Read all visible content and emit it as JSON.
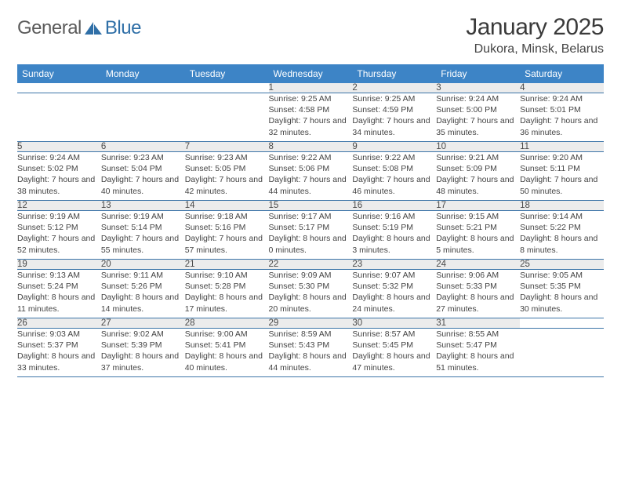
{
  "logo": {
    "text1": "General",
    "text2": "Blue"
  },
  "title": "January 2025",
  "location": "Dukora, Minsk, Belarus",
  "colors": {
    "header_bg": "#3d84c6",
    "header_text": "#ffffff",
    "daynum_bg": "#ececec",
    "row_divider": "#3d75a8",
    "logo_gray": "#5b5b5b",
    "logo_blue": "#2f6fa7"
  },
  "weekdays": [
    "Sunday",
    "Monday",
    "Tuesday",
    "Wednesday",
    "Thursday",
    "Friday",
    "Saturday"
  ],
  "weeks": [
    [
      null,
      null,
      null,
      {
        "n": "1",
        "sr": "9:25 AM",
        "ss": "4:58 PM",
        "dl": "7 hours and 32 minutes."
      },
      {
        "n": "2",
        "sr": "9:25 AM",
        "ss": "4:59 PM",
        "dl": "7 hours and 34 minutes."
      },
      {
        "n": "3",
        "sr": "9:24 AM",
        "ss": "5:00 PM",
        "dl": "7 hours and 35 minutes."
      },
      {
        "n": "4",
        "sr": "9:24 AM",
        "ss": "5:01 PM",
        "dl": "7 hours and 36 minutes."
      }
    ],
    [
      {
        "n": "5",
        "sr": "9:24 AM",
        "ss": "5:02 PM",
        "dl": "7 hours and 38 minutes."
      },
      {
        "n": "6",
        "sr": "9:23 AM",
        "ss": "5:04 PM",
        "dl": "7 hours and 40 minutes."
      },
      {
        "n": "7",
        "sr": "9:23 AM",
        "ss": "5:05 PM",
        "dl": "7 hours and 42 minutes."
      },
      {
        "n": "8",
        "sr": "9:22 AM",
        "ss": "5:06 PM",
        "dl": "7 hours and 44 minutes."
      },
      {
        "n": "9",
        "sr": "9:22 AM",
        "ss": "5:08 PM",
        "dl": "7 hours and 46 minutes."
      },
      {
        "n": "10",
        "sr": "9:21 AM",
        "ss": "5:09 PM",
        "dl": "7 hours and 48 minutes."
      },
      {
        "n": "11",
        "sr": "9:20 AM",
        "ss": "5:11 PM",
        "dl": "7 hours and 50 minutes."
      }
    ],
    [
      {
        "n": "12",
        "sr": "9:19 AM",
        "ss": "5:12 PM",
        "dl": "7 hours and 52 minutes."
      },
      {
        "n": "13",
        "sr": "9:19 AM",
        "ss": "5:14 PM",
        "dl": "7 hours and 55 minutes."
      },
      {
        "n": "14",
        "sr": "9:18 AM",
        "ss": "5:16 PM",
        "dl": "7 hours and 57 minutes."
      },
      {
        "n": "15",
        "sr": "9:17 AM",
        "ss": "5:17 PM",
        "dl": "8 hours and 0 minutes."
      },
      {
        "n": "16",
        "sr": "9:16 AM",
        "ss": "5:19 PM",
        "dl": "8 hours and 3 minutes."
      },
      {
        "n": "17",
        "sr": "9:15 AM",
        "ss": "5:21 PM",
        "dl": "8 hours and 5 minutes."
      },
      {
        "n": "18",
        "sr": "9:14 AM",
        "ss": "5:22 PM",
        "dl": "8 hours and 8 minutes."
      }
    ],
    [
      {
        "n": "19",
        "sr": "9:13 AM",
        "ss": "5:24 PM",
        "dl": "8 hours and 11 minutes."
      },
      {
        "n": "20",
        "sr": "9:11 AM",
        "ss": "5:26 PM",
        "dl": "8 hours and 14 minutes."
      },
      {
        "n": "21",
        "sr": "9:10 AM",
        "ss": "5:28 PM",
        "dl": "8 hours and 17 minutes."
      },
      {
        "n": "22",
        "sr": "9:09 AM",
        "ss": "5:30 PM",
        "dl": "8 hours and 20 minutes."
      },
      {
        "n": "23",
        "sr": "9:07 AM",
        "ss": "5:32 PM",
        "dl": "8 hours and 24 minutes."
      },
      {
        "n": "24",
        "sr": "9:06 AM",
        "ss": "5:33 PM",
        "dl": "8 hours and 27 minutes."
      },
      {
        "n": "25",
        "sr": "9:05 AM",
        "ss": "5:35 PM",
        "dl": "8 hours and 30 minutes."
      }
    ],
    [
      {
        "n": "26",
        "sr": "9:03 AM",
        "ss": "5:37 PM",
        "dl": "8 hours and 33 minutes."
      },
      {
        "n": "27",
        "sr": "9:02 AM",
        "ss": "5:39 PM",
        "dl": "8 hours and 37 minutes."
      },
      {
        "n": "28",
        "sr": "9:00 AM",
        "ss": "5:41 PM",
        "dl": "8 hours and 40 minutes."
      },
      {
        "n": "29",
        "sr": "8:59 AM",
        "ss": "5:43 PM",
        "dl": "8 hours and 44 minutes."
      },
      {
        "n": "30",
        "sr": "8:57 AM",
        "ss": "5:45 PM",
        "dl": "8 hours and 47 minutes."
      },
      {
        "n": "31",
        "sr": "8:55 AM",
        "ss": "5:47 PM",
        "dl": "8 hours and 51 minutes."
      },
      null
    ]
  ],
  "labels": {
    "sunrise": "Sunrise: ",
    "sunset": "Sunset: ",
    "daylight": "Daylight: "
  }
}
